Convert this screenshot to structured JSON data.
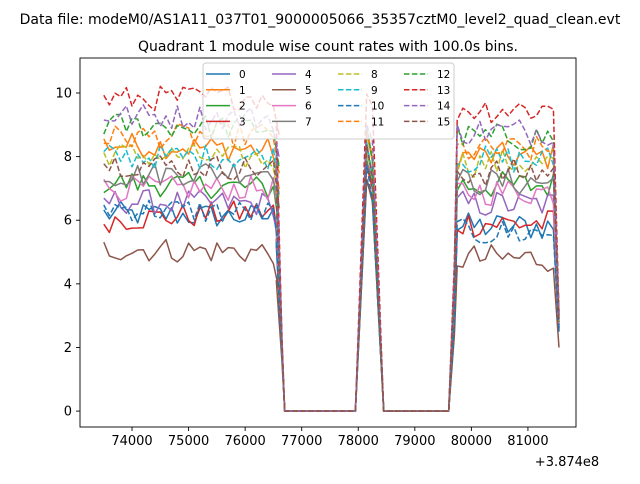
{
  "figure": {
    "suptitle": "Data file: modeM0/AS1A11_037T01_9000005066_35357cztM0_level2_quad_clean.evt"
  },
  "chart_data": {
    "type": "line",
    "title": "Quadrant 1 module wise count rates with 100.0s bins.",
    "xlabel": "",
    "ylabel": "",
    "x_offset_label": "+3.874e8",
    "xlim": [
      73080,
      81850
    ],
    "ylim": [
      -0.5,
      11.1
    ],
    "xticks": [
      74000,
      75000,
      76000,
      77000,
      78000,
      79000,
      80000,
      81000
    ],
    "yticks": [
      0,
      2,
      4,
      6,
      8,
      10
    ],
    "grid": false,
    "legend_position": "upper-center",
    "legend_columns": 4,
    "segments": [
      {
        "start": 73500,
        "end": 76650,
        "type": "active_1"
      },
      {
        "start": 76650,
        "end": 77950,
        "type": "gap_1"
      },
      {
        "start": 77950,
        "end": 78450,
        "type": "peak_1"
      },
      {
        "start": 78450,
        "end": 79600,
        "type": "gap_2"
      },
      {
        "start": 79600,
        "end": 81550,
        "type": "active_2"
      }
    ],
    "series": [
      {
        "name": "0",
        "color": "#1f77b4",
        "dash": "solid",
        "levels": [
          6.2,
          6.1,
          1.8,
          7.5,
          5.8,
          2.5
        ]
      },
      {
        "name": "1",
        "color": "#ff7f0e",
        "dash": "solid",
        "levels": [
          8.4,
          8.2,
          2.1,
          8.5,
          8.0,
          2.9
        ]
      },
      {
        "name": "2",
        "color": "#2ca02c",
        "dash": "solid",
        "levels": [
          7.2,
          7.0,
          2.0,
          7.8,
          7.1,
          2.7
        ]
      },
      {
        "name": "3",
        "color": "#d62728",
        "dash": "solid",
        "levels": [
          6.0,
          6.3,
          1.8,
          7.6,
          5.9,
          2.6
        ]
      },
      {
        "name": "4",
        "color": "#9467bd",
        "dash": "solid",
        "levels": [
          6.6,
          6.5,
          1.9,
          7.9,
          6.5,
          2.6
        ]
      },
      {
        "name": "5",
        "color": "#8c564b",
        "dash": "solid",
        "levels": [
          5.1,
          5.0,
          1.6,
          7.1,
          4.8,
          2.0
        ]
      },
      {
        "name": "6",
        "color": "#e377c2",
        "dash": "solid",
        "levels": [
          7.0,
          7.0,
          1.9,
          8.0,
          6.9,
          2.7
        ]
      },
      {
        "name": "7",
        "color": "#7f7f7f",
        "dash": "solid",
        "levels": [
          7.4,
          7.6,
          2.0,
          8.2,
          7.2,
          2.8
        ]
      },
      {
        "name": "8",
        "color": "#bcbd22",
        "dash": "dashed",
        "levels": [
          8.1,
          7.9,
          2.0,
          8.3,
          7.8,
          2.8
        ]
      },
      {
        "name": "9",
        "color": "#17becf",
        "dash": "dashed",
        "levels": [
          8.0,
          8.0,
          2.1,
          8.4,
          7.9,
          2.9
        ]
      },
      {
        "name": "10",
        "color": "#1f77b4",
        "dash": "dashed",
        "levels": [
          6.4,
          6.2,
          1.8,
          7.6,
          5.6,
          2.5
        ]
      },
      {
        "name": "11",
        "color": "#ff7f0e",
        "dash": "dashed",
        "levels": [
          8.6,
          8.7,
          2.2,
          8.6,
          8.2,
          3.0
        ]
      },
      {
        "name": "12",
        "color": "#2ca02c",
        "dash": "dashed",
        "levels": [
          9.0,
          8.9,
          2.2,
          8.8,
          8.6,
          3.0
        ]
      },
      {
        "name": "13",
        "color": "#d62728",
        "dash": "dashed",
        "levels": [
          9.8,
          9.9,
          2.4,
          10.1,
          9.5,
          3.1
        ]
      },
      {
        "name": "14",
        "color": "#9467bd",
        "dash": "dashed",
        "levels": [
          9.3,
          9.2,
          2.3,
          9.0,
          8.8,
          3.0
        ]
      },
      {
        "name": "15",
        "color": "#8c564b",
        "dash": "dashed",
        "levels": [
          7.8,
          7.6,
          2.1,
          8.1,
          7.5,
          2.8
        ]
      }
    ]
  }
}
